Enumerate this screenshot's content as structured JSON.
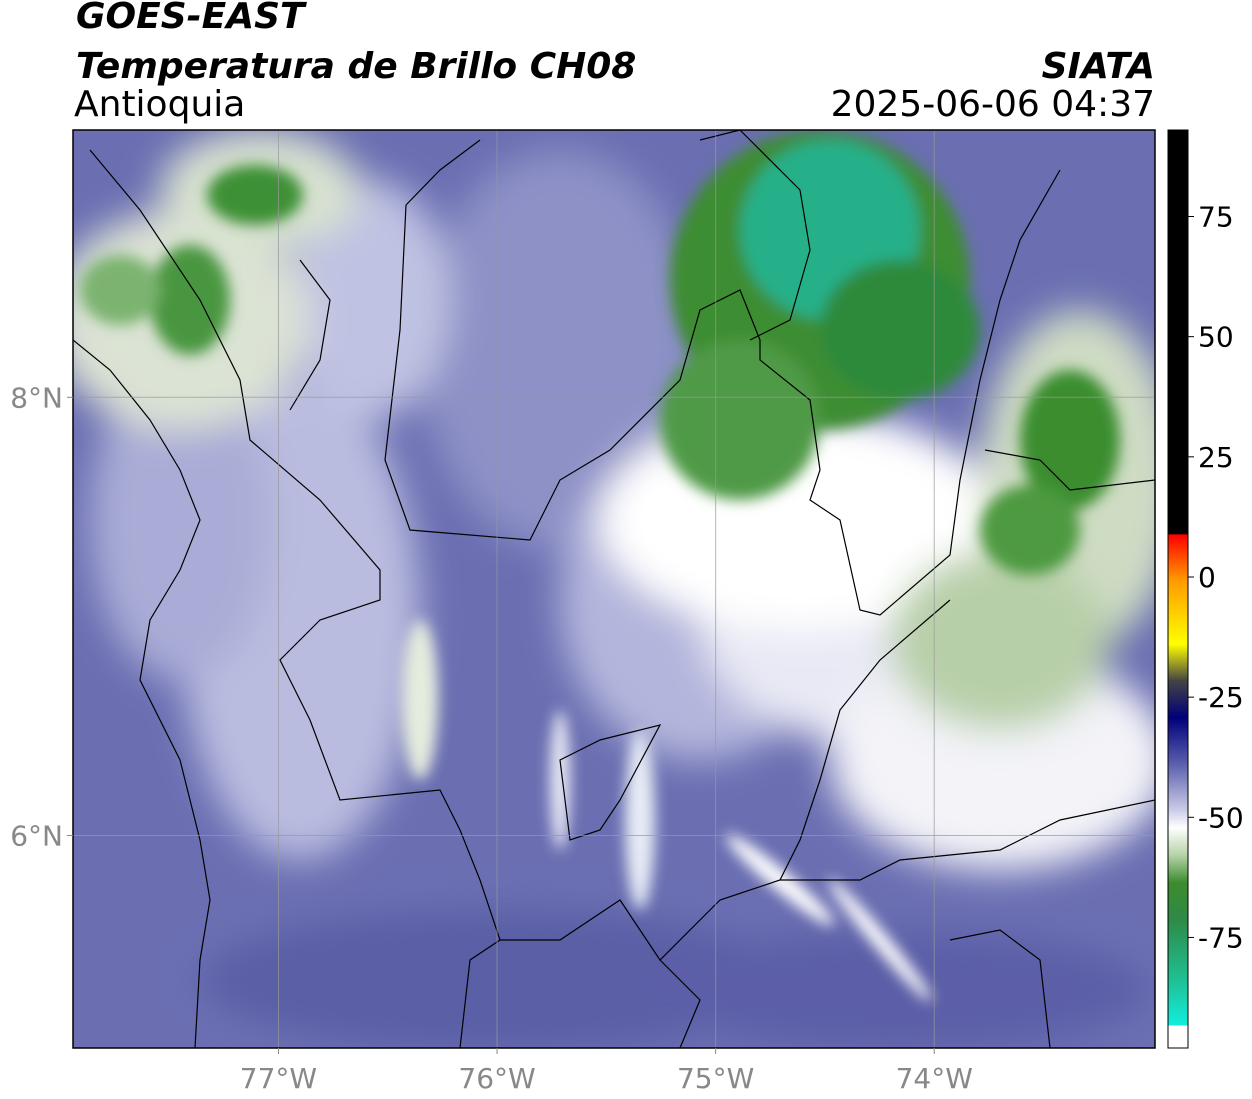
{
  "map": {
    "title": "GOES-EAST",
    "subtitle": "Temperatura de Brillo CH08",
    "region": "Antioquia",
    "source": "SIATA",
    "datetime": "2025-06-06 04:37",
    "xlim": [
      -77.94,
      -72.99
    ],
    "ylim": [
      5.03,
      9.22
    ],
    "xticks": [
      {
        "value": -77,
        "label": "77°W"
      },
      {
        "value": -76,
        "label": "76°W"
      },
      {
        "value": -75,
        "label": "75°W"
      },
      {
        "value": -74,
        "label": "74°W"
      }
    ],
    "yticks": [
      {
        "value": 8,
        "label": "8°N"
      },
      {
        "value": 6,
        "label": "6°N"
      }
    ],
    "grid": true,
    "colorbar": {
      "lim": [
        -98,
        93
      ],
      "ticks": [
        75,
        50,
        25,
        0,
        -25,
        -50,
        -75
      ]
    }
  }
}
